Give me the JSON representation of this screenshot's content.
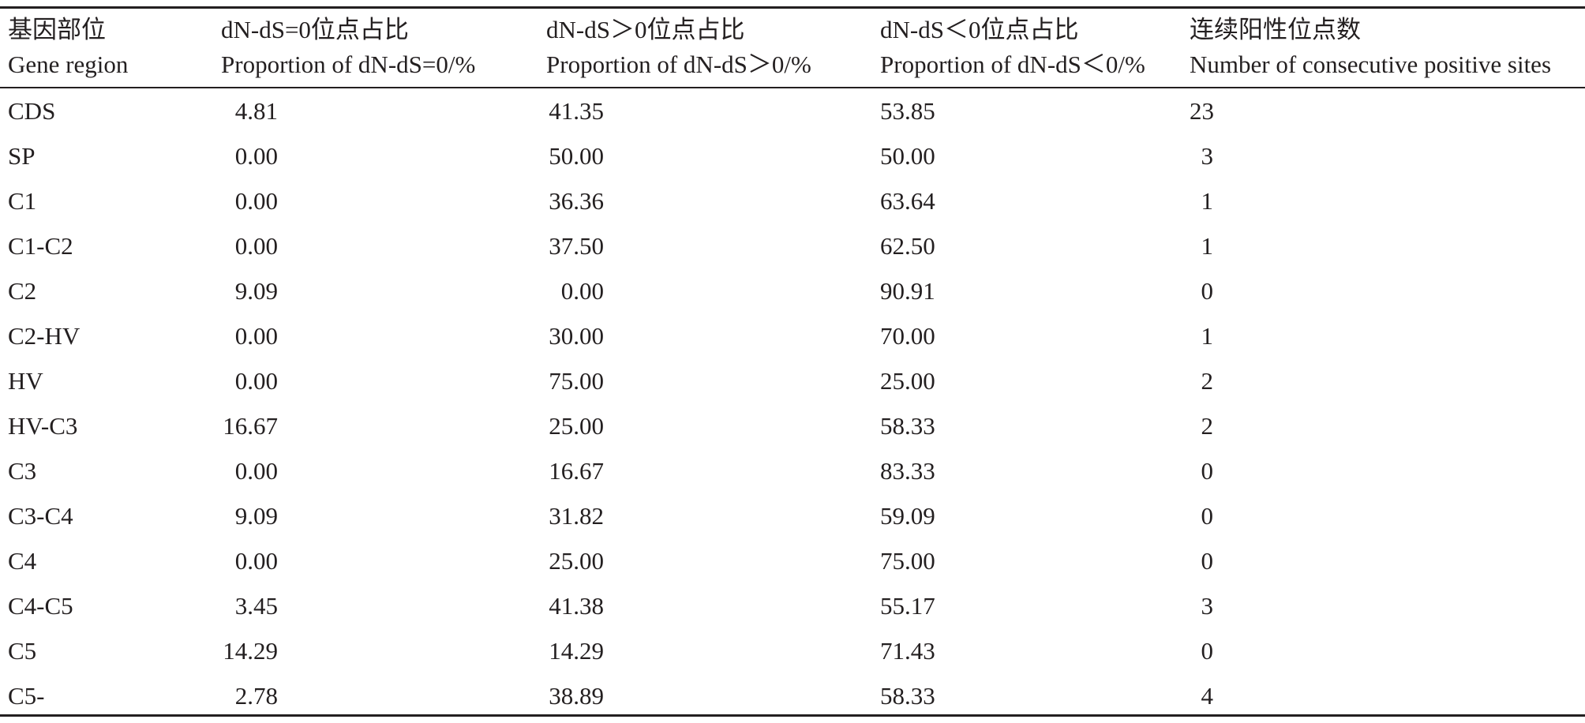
{
  "table": {
    "headers": [
      {
        "zh": "基因部位",
        "en": "Gene region"
      },
      {
        "zh": "dN-dS=0位点占比",
        "en": "Proportion of dN-dS=0/%"
      },
      {
        "zh": "dN-dS＞0位点占比",
        "en": "Proportion of dN-dS＞0/%"
      },
      {
        "zh": "dN-dS＜0位点占比",
        "en": "Proportion of dN-dS＜0/%"
      },
      {
        "zh": "连续阳性位点数",
        "en": "Number of consecutive positive sites"
      }
    ],
    "rows": [
      [
        "CDS",
        "4.81",
        "41.35",
        "53.85",
        "23"
      ],
      [
        "SP",
        "0.00",
        "50.00",
        "50.00",
        "3"
      ],
      [
        "C1",
        "0.00",
        "36.36",
        "63.64",
        "1"
      ],
      [
        "C1-C2",
        "0.00",
        "37.50",
        "62.50",
        "1"
      ],
      [
        "C2",
        "9.09",
        "0.00",
        "90.91",
        "0"
      ],
      [
        "C2-HV",
        "0.00",
        "30.00",
        "70.00",
        "1"
      ],
      [
        "HV",
        "0.00",
        "75.00",
        "25.00",
        "2"
      ],
      [
        "HV-C3",
        "16.67",
        "25.00",
        "58.33",
        "2"
      ],
      [
        "C3",
        "0.00",
        "16.67",
        "83.33",
        "0"
      ],
      [
        "C3-C4",
        "9.09",
        "31.82",
        "59.09",
        "0"
      ],
      [
        "C4",
        "0.00",
        "25.00",
        "75.00",
        "0"
      ],
      [
        "C4-C5",
        "3.45",
        "41.38",
        "55.17",
        "3"
      ],
      [
        "C5",
        "14.29",
        "14.29",
        "71.43",
        "0"
      ],
      [
        "C5-",
        "2.78",
        "38.89",
        "58.33",
        "4"
      ]
    ]
  }
}
